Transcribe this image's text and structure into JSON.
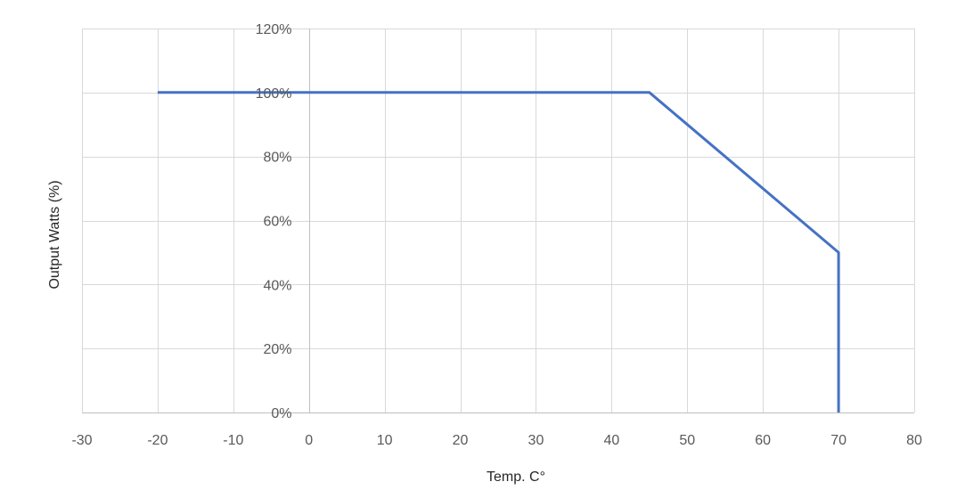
{
  "chart_data": {
    "type": "line",
    "title": "",
    "xlabel": "Temp. C°",
    "ylabel": "Output Watts (%)",
    "xlim": [
      -30,
      80
    ],
    "ylim": [
      0,
      120
    ],
    "x_ticks": [
      "-30",
      "-10",
      "-20",
      "0",
      "10",
      "20",
      "30",
      "40",
      "50",
      "60",
      "70",
      "80"
    ],
    "x_tick_values": [
      -30,
      -10,
      -20,
      0,
      10,
      20,
      30,
      40,
      50,
      60,
      70,
      80
    ],
    "y_ticks": [
      "0%",
      "20%",
      "40%",
      "60%",
      "80%",
      "100%",
      "120%"
    ],
    "y_tick_values": [
      0,
      20,
      40,
      60,
      80,
      100,
      120
    ],
    "grid": true,
    "legend": "none",
    "series": [
      {
        "x": [
          -20,
          45,
          70,
          70
        ],
        "y": [
          100,
          100,
          50,
          0
        ],
        "color": "#4472c4"
      }
    ]
  },
  "colors": {
    "grid": "#d9d9d9",
    "tick_text": "#595959",
    "axis_title": "#262626"
  }
}
